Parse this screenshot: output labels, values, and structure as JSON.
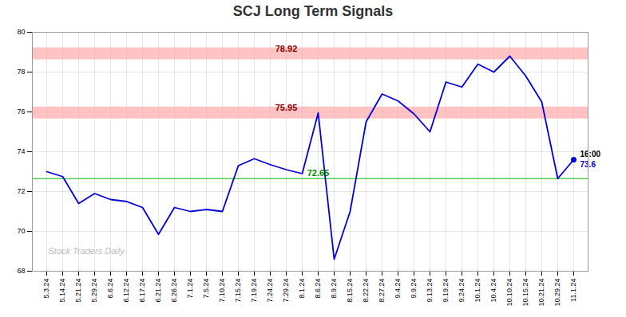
{
  "chart_data": {
    "type": "line",
    "title": "SCJ Long Term Signals",
    "categories": [
      "5.3.24",
      "5.14.24",
      "5.21.24",
      "5.29.24",
      "6.6.24",
      "6.12.24",
      "6.17.24",
      "6.21.24",
      "6.26.24",
      "7.1.24",
      "7.5.24",
      "7.10.24",
      "7.15.24",
      "7.19.24",
      "7.24.24",
      "7.29.24",
      "8.1.24",
      "8.6.24",
      "8.9.24",
      "8.15.24",
      "8.22.24",
      "8.27.24",
      "9.4.24",
      "9.9.24",
      "9.13.24",
      "9.19.24",
      "9.24.24",
      "10.1.24",
      "10.4.24",
      "10.10.24",
      "10.15.24",
      "10.21.24",
      "10.29.24",
      "11.1.24"
    ],
    "values": [
      73.0,
      72.75,
      71.4,
      71.9,
      71.6,
      71.5,
      71.2,
      69.85,
      71.2,
      71.0,
      71.1,
      71.0,
      73.3,
      73.65,
      73.35,
      73.1,
      72.9,
      75.95,
      68.6,
      71.0,
      75.5,
      76.9,
      76.55,
      75.9,
      75.0,
      77.5,
      77.25,
      78.4,
      78.0,
      78.8,
      77.8,
      76.5,
      72.65,
      73.6
    ],
    "color": "#0000dd",
    "ylim": [
      68,
      80
    ],
    "yticks": [
      68,
      70,
      72,
      74,
      76,
      78,
      80
    ],
    "grid": true,
    "reference_lines": [
      {
        "value": 75.95,
        "color": "#ffaaaa",
        "line_style": "band"
      },
      {
        "value": 78.92,
        "color": "#ffaaaa",
        "line_style": "band"
      },
      {
        "value": 72.65,
        "color": "#00bb00",
        "line_style": "solid"
      }
    ],
    "last_point": {
      "x": "11.1.24",
      "y": 73.6,
      "color": "#0000dd",
      "marker": "circle"
    },
    "annotations": [
      {
        "text": "78.92",
        "x": "7.29.24",
        "y": 78.92,
        "color": "#880000",
        "position": "above"
      },
      {
        "text": "75.95",
        "x": "7.29.24",
        "y": 75.95,
        "color": "#880000",
        "position": "above"
      },
      {
        "text": "72.65",
        "x": "8.6.24",
        "y": 72.65,
        "color": "#008800",
        "position": "above"
      },
      {
        "text": "16:00",
        "x": "11.1.24",
        "y": 73.6,
        "color": "#000000",
        "position": "right-above"
      },
      {
        "text": "73.6",
        "x": "11.1.24",
        "y": 73.6,
        "color": "#0000cc",
        "position": "right-below"
      }
    ],
    "watermark": {
      "text": "Stock Traders Daily",
      "color": "#bbbbbb"
    }
  }
}
